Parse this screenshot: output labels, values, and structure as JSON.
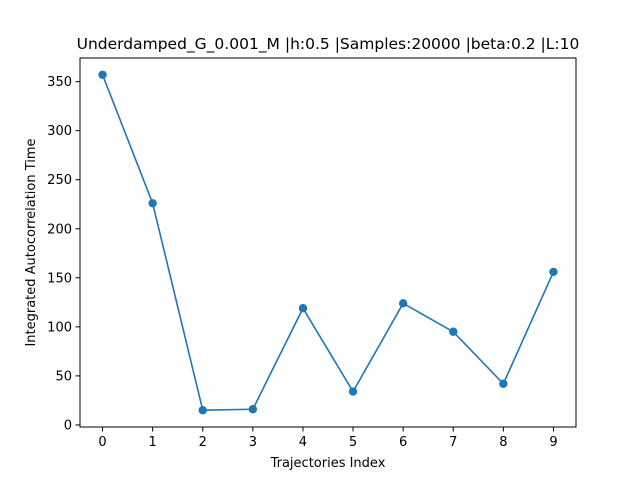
{
  "chart_data": {
    "type": "line",
    "title": "Underdamped_G_0.001_M |h:0.5 |Samples:20000 |beta:0.2 |L:10",
    "xlabel": "Trajectories Index",
    "ylabel": "Integrated Autocorrelation Time",
    "x": [
      0,
      1,
      2,
      3,
      4,
      5,
      6,
      7,
      8,
      9
    ],
    "series": [
      {
        "values": [
          357,
          226,
          15,
          16,
          119,
          34,
          124,
          95,
          42,
          156
        ],
        "color": "#1f77b4",
        "marker": "circle"
      }
    ],
    "xlim": [
      -0.45,
      9.45
    ],
    "ylim": [
      -2.1,
      374.1
    ],
    "xticks": [
      0,
      1,
      2,
      3,
      4,
      5,
      6,
      7,
      8,
      9
    ],
    "yticks": [
      0,
      50,
      100,
      150,
      200,
      250,
      300,
      350
    ],
    "grid": false,
    "legend": false
  }
}
